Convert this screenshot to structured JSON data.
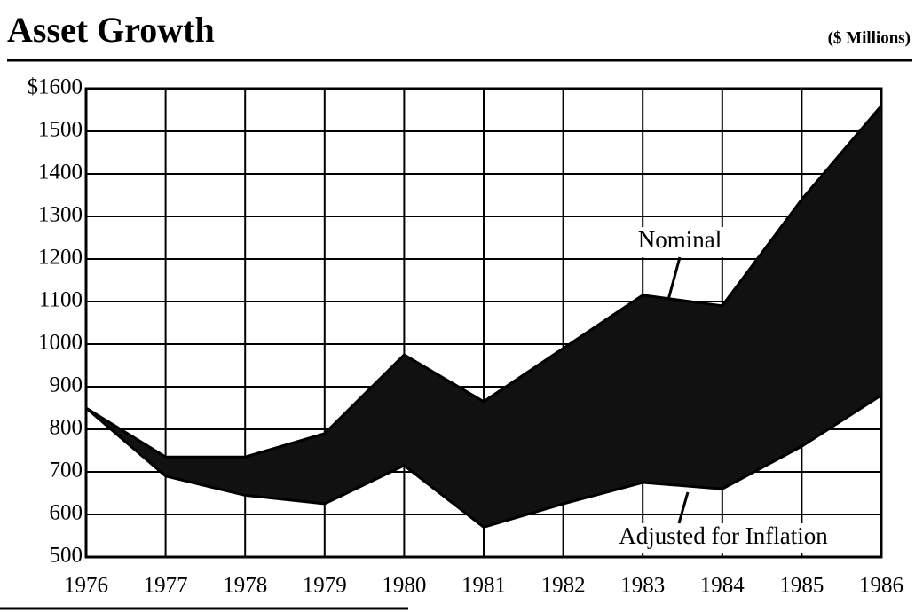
{
  "chart_data": {
    "type": "area-band",
    "title": "Asset Growth",
    "subtitle": "($ Millions)",
    "x": [
      1976,
      1977,
      1978,
      1979,
      1980,
      1981,
      1982,
      1983,
      1984,
      1985,
      1986
    ],
    "series": [
      {
        "name": "Nominal",
        "color": "#000000",
        "values": [
          850,
          735,
          735,
          790,
          975,
          865,
          990,
          1115,
          1090,
          1340,
          1560
        ]
      },
      {
        "name": "Adjusted for Inflation",
        "color": "#000000",
        "values": [
          850,
          690,
          645,
          625,
          715,
          570,
          625,
          675,
          660,
          760,
          880
        ]
      }
    ],
    "xlim": [
      1976,
      1986
    ],
    "xticks": [
      1976,
      1977,
      1978,
      1979,
      1980,
      1981,
      1982,
      1983,
      1984,
      1985,
      1986
    ],
    "ylim": [
      500,
      1600
    ],
    "yticks": [
      500,
      600,
      700,
      800,
      900,
      1000,
      1100,
      1200,
      1300,
      1400,
      {
        "value": 1500,
        "label": "1500"
      },
      {
        "value": 1600,
        "label": "$1600"
      }
    ],
    "grid": true
  }
}
